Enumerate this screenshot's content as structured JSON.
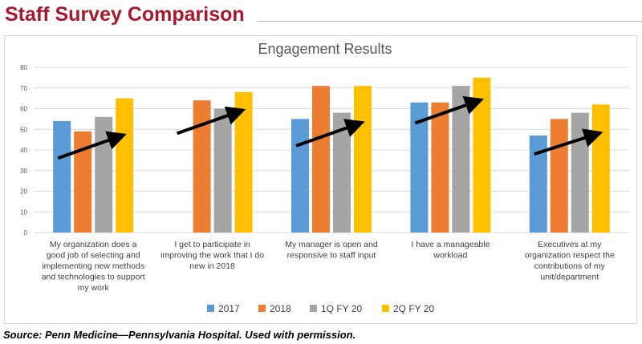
{
  "slide": {
    "title": "Staff Survey Comparison",
    "source": "Source: Penn Medicine—Pennsylvania Hospital. Used with permission."
  },
  "chart_data": {
    "type": "bar",
    "title": "Engagement Results",
    "xlabel": "",
    "ylabel": "",
    "ylim": [
      0,
      80
    ],
    "yticks": [
      0,
      10,
      20,
      30,
      40,
      50,
      60,
      70,
      80
    ],
    "grid": true,
    "legend_position": "bottom",
    "categories": [
      [
        "My organization does a",
        "good job of selecting and",
        "implementing new methods",
        "and technologies to support",
        "my work"
      ],
      [
        "I get to participate in",
        "improving the work that I do",
        "new in 2018"
      ],
      [
        "My manager is open and",
        "responsive to staff input"
      ],
      [
        "I have a manageable",
        "workload"
      ],
      [
        "Executives at my",
        "organization respect the",
        "contributions of my",
        "unit/department"
      ]
    ],
    "series": [
      {
        "name": "2017",
        "color": "#5b9bd5",
        "values": [
          54,
          null,
          55,
          63,
          47
        ]
      },
      {
        "name": "2018",
        "color": "#ed7d31",
        "values": [
          49,
          64,
          71,
          63,
          55
        ]
      },
      {
        "name": "1Q FY 20",
        "color": "#a5a5a5",
        "values": [
          56,
          60,
          58,
          71,
          58
        ]
      },
      {
        "name": "2Q FY 20",
        "color": "#ffc000",
        "values": [
          65,
          68,
          71,
          75,
          62
        ]
      }
    ],
    "trend_arrows": [
      {
        "from": 36,
        "to": 47
      },
      {
        "from": 48,
        "to": 59
      },
      {
        "from": 42,
        "to": 53
      },
      {
        "from": 53,
        "to": 64
      },
      {
        "from": 38,
        "to": 48
      }
    ]
  }
}
